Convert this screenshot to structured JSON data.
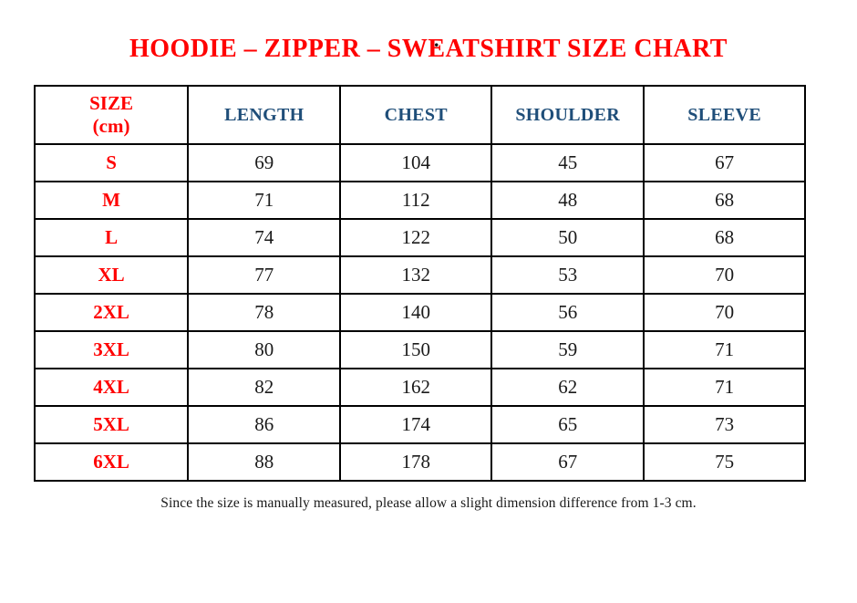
{
  "page": {
    "top_dot": ".",
    "title": "HOODIE – ZIPPER – SWEATSHIRT SIZE CHART",
    "footer_note": "Since the size is manually measured, please allow a slight dimension difference from 1-3 cm."
  },
  "colors": {
    "title_red": "#FF0000",
    "header_navy": "#1F4E79",
    "value_black": "#1A1A1A",
    "border_black": "#000000"
  },
  "table": {
    "size_header": {
      "line1": "SIZE",
      "line2": "(cm)"
    },
    "measure_columns": [
      "LENGTH",
      "CHEST",
      "SHOULDER",
      "SLEEVE"
    ],
    "rows": [
      {
        "size": "S",
        "values": [
          "69",
          "104",
          "45",
          "67"
        ]
      },
      {
        "size": "M",
        "values": [
          "71",
          "112",
          "48",
          "68"
        ]
      },
      {
        "size": "L",
        "values": [
          "74",
          "122",
          "50",
          "68"
        ]
      },
      {
        "size": "XL",
        "values": [
          "77",
          "132",
          "53",
          "70"
        ]
      },
      {
        "size": "2XL",
        "values": [
          "78",
          "140",
          "56",
          "70"
        ]
      },
      {
        "size": "3XL",
        "values": [
          "80",
          "150",
          "59",
          "71"
        ]
      },
      {
        "size": "4XL",
        "values": [
          "82",
          "162",
          "62",
          "71"
        ]
      },
      {
        "size": "5XL",
        "values": [
          "86",
          "174",
          "65",
          "73"
        ]
      },
      {
        "size": "6XL",
        "values": [
          "88",
          "178",
          "67",
          "75"
        ]
      }
    ]
  }
}
